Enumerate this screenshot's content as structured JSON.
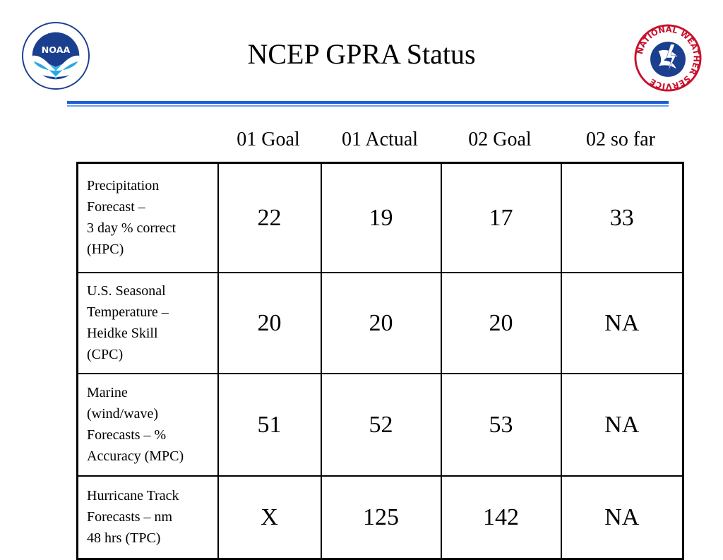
{
  "slide": {
    "title": "NCEP GPRA Status",
    "logos": {
      "left": {
        "icon": "noaa-logo",
        "text": "NOAA"
      },
      "right": {
        "icon": "national-weather-service-logo",
        "ring_text": "NATIONAL WEATHER SERVICE"
      }
    },
    "accent_color": "#1f5fd6"
  },
  "table": {
    "columns": [
      "01 Goal",
      "01 Actual",
      "02 Goal",
      "02 so far"
    ],
    "rows": [
      {
        "label_lines": [
          "Precipitation",
          "Forecast –",
          "3 day  % correct",
          "(HPC)"
        ],
        "values": [
          "22",
          "19",
          "17",
          "33"
        ]
      },
      {
        "label_lines": [
          "U.S. Seasonal",
          "Temperature –",
          "Heidke Skill",
          "(CPC)"
        ],
        "values": [
          "20",
          "20",
          "20",
          "NA"
        ]
      },
      {
        "label_lines": [
          "Marine",
          "(wind/wave)",
          "Forecasts – %",
          "Accuracy (MPC)"
        ],
        "values": [
          "51",
          "52",
          "53",
          "NA"
        ]
      },
      {
        "label_lines": [
          "Hurricane Track",
          "Forecasts –  nm",
          "48 hrs (TPC)"
        ],
        "values": [
          "X",
          "125",
          "142",
          "NA"
        ]
      }
    ]
  }
}
